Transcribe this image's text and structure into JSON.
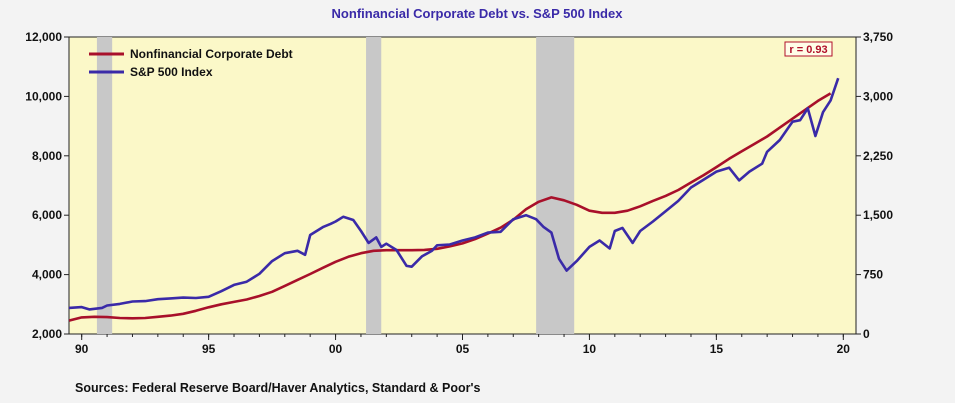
{
  "chart_data": {
    "type": "line",
    "title": "Nonfinancial Corporate Debt vs. S&P 500 Index",
    "annotation": "r = 0.93",
    "source": "Sources:  Federal Reserve Board/Haver Analytics, Standard & Poor's",
    "x_ticks": [
      {
        "value": 1990,
        "label": "90"
      },
      {
        "value": 1995,
        "label": "95"
      },
      {
        "value": 2000,
        "label": "00"
      },
      {
        "value": 2005,
        "label": "05"
      },
      {
        "value": 2010,
        "label": "10"
      },
      {
        "value": 2015,
        "label": "15"
      },
      {
        "value": 2020,
        "label": "20"
      }
    ],
    "xlim": [
      1989.5,
      2020.5
    ],
    "y_left": {
      "ylim": [
        2000,
        12000
      ],
      "ticks": [
        "2,000",
        "4,000",
        "6,000",
        "8,000",
        "10,000",
        "12,000"
      ],
      "tick_values": [
        2000,
        4000,
        6000,
        8000,
        10000,
        12000
      ]
    },
    "y_right": {
      "ylim": [
        0,
        3750
      ],
      "ticks": [
        "0",
        "750",
        "1,500",
        "2,250",
        "3,000",
        "3,750"
      ],
      "tick_values": [
        0,
        750,
        1500,
        2250,
        3000,
        3750
      ]
    },
    "recessions": [
      [
        1990.6,
        1991.2
      ],
      [
        2001.2,
        2001.8
      ],
      [
        2007.9,
        2009.4
      ]
    ],
    "grid": false,
    "legend_position": "top-left",
    "series": [
      {
        "name": "Nonfinancial Corporate Debt",
        "axis": "left",
        "color": "#a8102a",
        "points": [
          [
            1989.5,
            2450
          ],
          [
            1990,
            2560
          ],
          [
            1990.5,
            2580
          ],
          [
            1991,
            2570
          ],
          [
            1991.5,
            2540
          ],
          [
            1992,
            2530
          ],
          [
            1992.5,
            2540
          ],
          [
            1993,
            2580
          ],
          [
            1993.5,
            2620
          ],
          [
            1994,
            2680
          ],
          [
            1994.5,
            2780
          ],
          [
            1995,
            2900
          ],
          [
            1995.5,
            3000
          ],
          [
            1996,
            3080
          ],
          [
            1996.5,
            3160
          ],
          [
            1997,
            3280
          ],
          [
            1997.5,
            3420
          ],
          [
            1998,
            3620
          ],
          [
            1998.5,
            3820
          ],
          [
            1999,
            4020
          ],
          [
            1999.5,
            4230
          ],
          [
            2000,
            4430
          ],
          [
            2000.5,
            4600
          ],
          [
            2001,
            4720
          ],
          [
            2001.5,
            4800
          ],
          [
            2002,
            4820
          ],
          [
            2002.5,
            4820
          ],
          [
            2003,
            4820
          ],
          [
            2003.5,
            4830
          ],
          [
            2004,
            4870
          ],
          [
            2004.5,
            4950
          ],
          [
            2005,
            5050
          ],
          [
            2005.5,
            5200
          ],
          [
            2006,
            5380
          ],
          [
            2006.5,
            5580
          ],
          [
            2007,
            5850
          ],
          [
            2007.5,
            6200
          ],
          [
            2008,
            6450
          ],
          [
            2008.5,
            6600
          ],
          [
            2009,
            6500
          ],
          [
            2009.5,
            6350
          ],
          [
            2010,
            6150
          ],
          [
            2010.5,
            6080
          ],
          [
            2011,
            6080
          ],
          [
            2011.5,
            6150
          ],
          [
            2012,
            6300
          ],
          [
            2012.5,
            6480
          ],
          [
            2013,
            6650
          ],
          [
            2013.5,
            6850
          ],
          [
            2014,
            7100
          ],
          [
            2014.5,
            7350
          ],
          [
            2015,
            7620
          ],
          [
            2015.5,
            7900
          ],
          [
            2016,
            8150
          ],
          [
            2016.5,
            8400
          ],
          [
            2017,
            8650
          ],
          [
            2017.5,
            8950
          ],
          [
            2018,
            9250
          ],
          [
            2018.5,
            9550
          ],
          [
            2019,
            9850
          ],
          [
            2019.5,
            10100
          ]
        ]
      },
      {
        "name": "S&P 500 Index",
        "axis": "right",
        "color": "#3a2aa8",
        "points": [
          [
            1989.5,
            330
          ],
          [
            1990,
            340
          ],
          [
            1990.3,
            310
          ],
          [
            1990.8,
            330
          ],
          [
            1991,
            360
          ],
          [
            1991.5,
            380
          ],
          [
            1992,
            410
          ],
          [
            1992.5,
            415
          ],
          [
            1993,
            440
          ],
          [
            1993.5,
            450
          ],
          [
            1994,
            460
          ],
          [
            1994.5,
            455
          ],
          [
            1995,
            470
          ],
          [
            1995.5,
            540
          ],
          [
            1996,
            620
          ],
          [
            1996.5,
            660
          ],
          [
            1997,
            760
          ],
          [
            1997.5,
            920
          ],
          [
            1998,
            1020
          ],
          [
            1998.5,
            1050
          ],
          [
            1998.8,
            1000
          ],
          [
            1999,
            1250
          ],
          [
            1999.5,
            1350
          ],
          [
            1999.8,
            1390
          ],
          [
            2000,
            1420
          ],
          [
            2000.3,
            1480
          ],
          [
            2000.7,
            1440
          ],
          [
            2001,
            1300
          ],
          [
            2001.3,
            1150
          ],
          [
            2001.6,
            1220
          ],
          [
            2001.8,
            1100
          ],
          [
            2002,
            1140
          ],
          [
            2002.4,
            1060
          ],
          [
            2002.8,
            860
          ],
          [
            2003,
            850
          ],
          [
            2003.4,
            980
          ],
          [
            2003.8,
            1050
          ],
          [
            2004,
            1120
          ],
          [
            2004.5,
            1130
          ],
          [
            2005,
            1180
          ],
          [
            2005.5,
            1220
          ],
          [
            2006,
            1280
          ],
          [
            2006.5,
            1290
          ],
          [
            2007,
            1450
          ],
          [
            2007.5,
            1500
          ],
          [
            2007.9,
            1450
          ],
          [
            2008.2,
            1350
          ],
          [
            2008.5,
            1280
          ],
          [
            2008.8,
            950
          ],
          [
            2009.1,
            800
          ],
          [
            2009.5,
            920
          ],
          [
            2010,
            1100
          ],
          [
            2010.4,
            1180
          ],
          [
            2010.8,
            1080
          ],
          [
            2011,
            1300
          ],
          [
            2011.3,
            1340
          ],
          [
            2011.7,
            1150
          ],
          [
            2012,
            1300
          ],
          [
            2012.5,
            1420
          ],
          [
            2013,
            1550
          ],
          [
            2013.5,
            1680
          ],
          [
            2014,
            1850
          ],
          [
            2014.5,
            1950
          ],
          [
            2015,
            2050
          ],
          [
            2015.5,
            2100
          ],
          [
            2015.9,
            1940
          ],
          [
            2016.3,
            2050
          ],
          [
            2016.8,
            2150
          ],
          [
            2017,
            2300
          ],
          [
            2017.5,
            2450
          ],
          [
            2018,
            2680
          ],
          [
            2018.3,
            2700
          ],
          [
            2018.6,
            2850
          ],
          [
            2018.9,
            2500
          ],
          [
            2019.2,
            2800
          ],
          [
            2019.5,
            2950
          ],
          [
            2019.8,
            3230
          ]
        ]
      }
    ]
  }
}
